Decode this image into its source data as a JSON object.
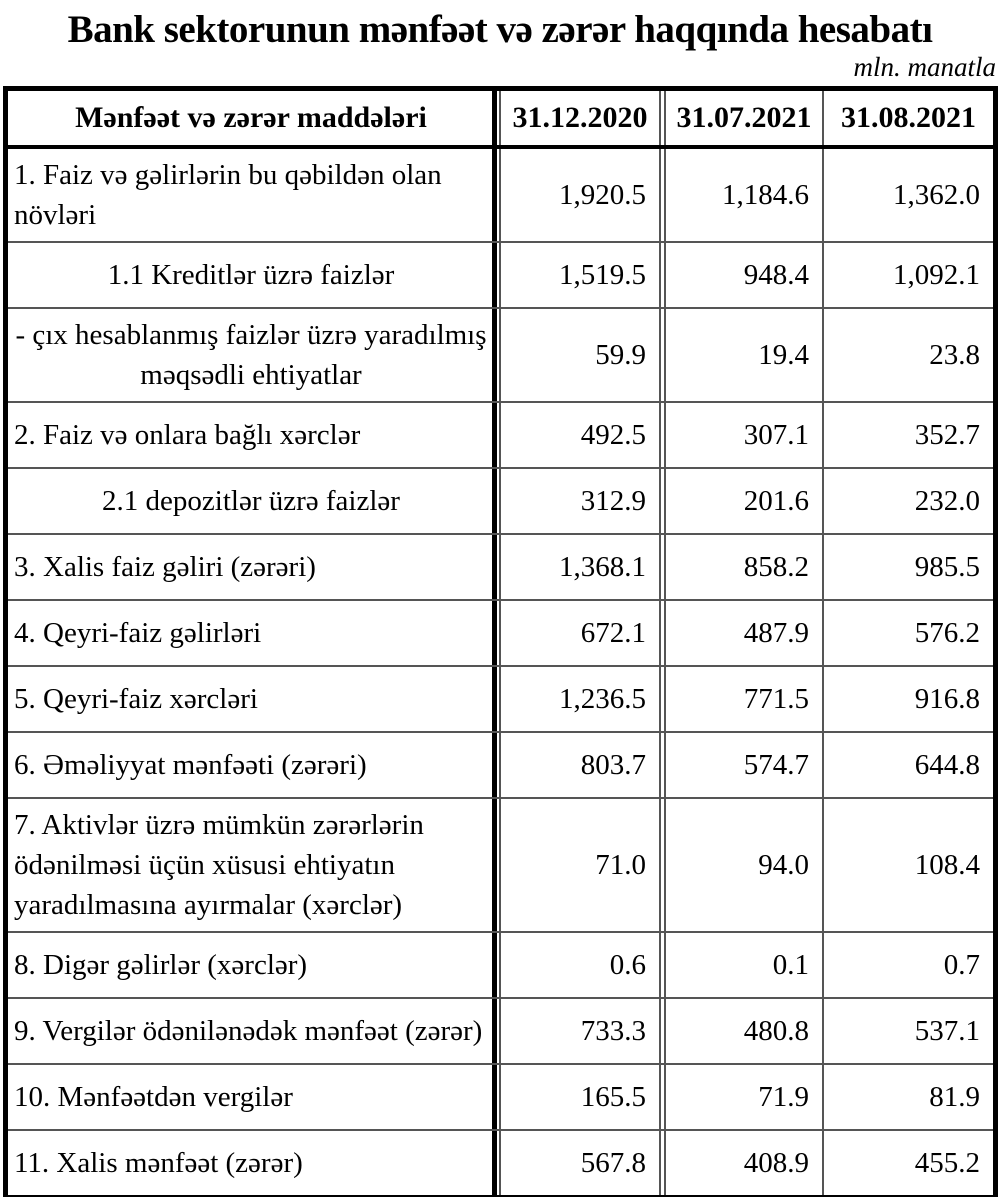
{
  "title": "Bank sektorunun mənfəət və zərər haqqında hesabatı",
  "unit_note": "mln. manatla",
  "table": {
    "header": {
      "label": "Mənfəət və zərər maddələri",
      "columns": [
        "31.12.2020",
        "31.07.2021",
        "31.08.2021"
      ]
    },
    "rows": [
      {
        "label": "1. Faiz və gəlirlərin bu qəbildən olan növləri",
        "align": "left",
        "values": [
          "1,920.5",
          "1,184.6",
          "1,362.0"
        ]
      },
      {
        "label": "1.1 Kreditlər üzrə faizlər",
        "align": "center",
        "values": [
          "1,519.5",
          "948.4",
          "1,092.1"
        ]
      },
      {
        "label": "- çıx hesablanmış faizlər üzrə yaradılmış məqsədli ehtiyatlar",
        "align": "center",
        "values": [
          "59.9",
          "19.4",
          "23.8"
        ]
      },
      {
        "label": "2. Faiz və onlara bağlı xərclər",
        "align": "left",
        "values": [
          "492.5",
          "307.1",
          "352.7"
        ]
      },
      {
        "label": "2.1 depozitlər üzrə faizlər",
        "align": "center",
        "values": [
          "312.9",
          "201.6",
          "232.0"
        ]
      },
      {
        "label": "3. Xalis faiz gəliri (zərəri)",
        "align": "left",
        "values": [
          "1,368.1",
          "858.2",
          "985.5"
        ]
      },
      {
        "label": "4. Qeyri-faiz gəlirləri",
        "align": "left",
        "values": [
          "672.1",
          "487.9",
          "576.2"
        ]
      },
      {
        "label": "5. Qeyri-faiz xərcləri",
        "align": "left",
        "values": [
          "1,236.5",
          "771.5",
          "916.8"
        ]
      },
      {
        "label": "6. Əməliyyat mənfəəti (zərəri)",
        "align": "left",
        "values": [
          "803.7",
          "574.7",
          "644.8"
        ]
      },
      {
        "label": "7. Aktivlər üzrə mümkün zərərlərin ödənilməsi üçün xüsusi ehtiyatın yaradılmasına ayırmalar (xərclər)",
        "align": "left",
        "values": [
          "71.0",
          "94.0",
          "108.4"
        ]
      },
      {
        "label": "8. Digər gəlirlər (xərclər)",
        "align": "left",
        "values": [
          "0.6",
          "0.1",
          "0.7"
        ]
      },
      {
        "label": "9. Vergilər ödənilənədək mənfəət (zərər)",
        "align": "left",
        "values": [
          "733.3",
          "480.8",
          "537.1"
        ]
      },
      {
        "label": "10. Mənfəətdən vergilər",
        "align": "left",
        "values": [
          "165.5",
          "71.9",
          "81.9"
        ]
      },
      {
        "label": "11. Xalis mənfəət (zərər)",
        "align": "left",
        "values": [
          "567.8",
          "408.9",
          "455.2"
        ]
      }
    ]
  },
  "chart_data": {
    "type": "table",
    "title": "Bank sektorunun mənfəət və zərər haqqında hesabatı",
    "unit": "mln. manatla",
    "categories": [
      "31.12.2020",
      "31.07.2021",
      "31.08.2021"
    ],
    "series": [
      {
        "name": "1. Faiz və gəlirlərin bu qəbildən olan növləri",
        "values": [
          1920.5,
          1184.6,
          1362.0
        ]
      },
      {
        "name": "1.1 Kreditlər üzrə faizlər",
        "values": [
          1519.5,
          948.4,
          1092.1
        ]
      },
      {
        "name": "- çıx hesablanmış faizlər üzrə yaradılmış məqsədli ehtiyatlar",
        "values": [
          59.9,
          19.4,
          23.8
        ]
      },
      {
        "name": "2. Faiz və onlara bağlı xərclər",
        "values": [
          492.5,
          307.1,
          352.7
        ]
      },
      {
        "name": "2.1 depozitlər üzrə faizlər",
        "values": [
          312.9,
          201.6,
          232.0
        ]
      },
      {
        "name": "3. Xalis faiz gəliri (zərəri)",
        "values": [
          1368.1,
          858.2,
          985.5
        ]
      },
      {
        "name": "4. Qeyri-faiz gəlirləri",
        "values": [
          672.1,
          487.9,
          576.2
        ]
      },
      {
        "name": "5. Qeyri-faiz xərcləri",
        "values": [
          1236.5,
          771.5,
          916.8
        ]
      },
      {
        "name": "6. Əməliyyat mənfəəti (zərəri)",
        "values": [
          803.7,
          574.7,
          644.8
        ]
      },
      {
        "name": "7. Aktivlər üzrə mümkün zərərlərin ödənilməsi üçün xüsusi ehtiyatın yaradılmasına ayırmalar (xərclər)",
        "values": [
          71.0,
          94.0,
          108.4
        ]
      },
      {
        "name": "8. Digər gəlirlər (xərclər)",
        "values": [
          0.6,
          0.1,
          0.7
        ]
      },
      {
        "name": "9. Vergilər ödənilənədək mənfəət (zərər)",
        "values": [
          733.3,
          480.8,
          537.1
        ]
      },
      {
        "name": "10. Mənfəətdən vergilər",
        "values": [
          165.5,
          71.9,
          81.9
        ]
      },
      {
        "name": "11. Xalis mənfəət (zərər)",
        "values": [
          567.8,
          408.9,
          455.2
        ]
      }
    ]
  }
}
